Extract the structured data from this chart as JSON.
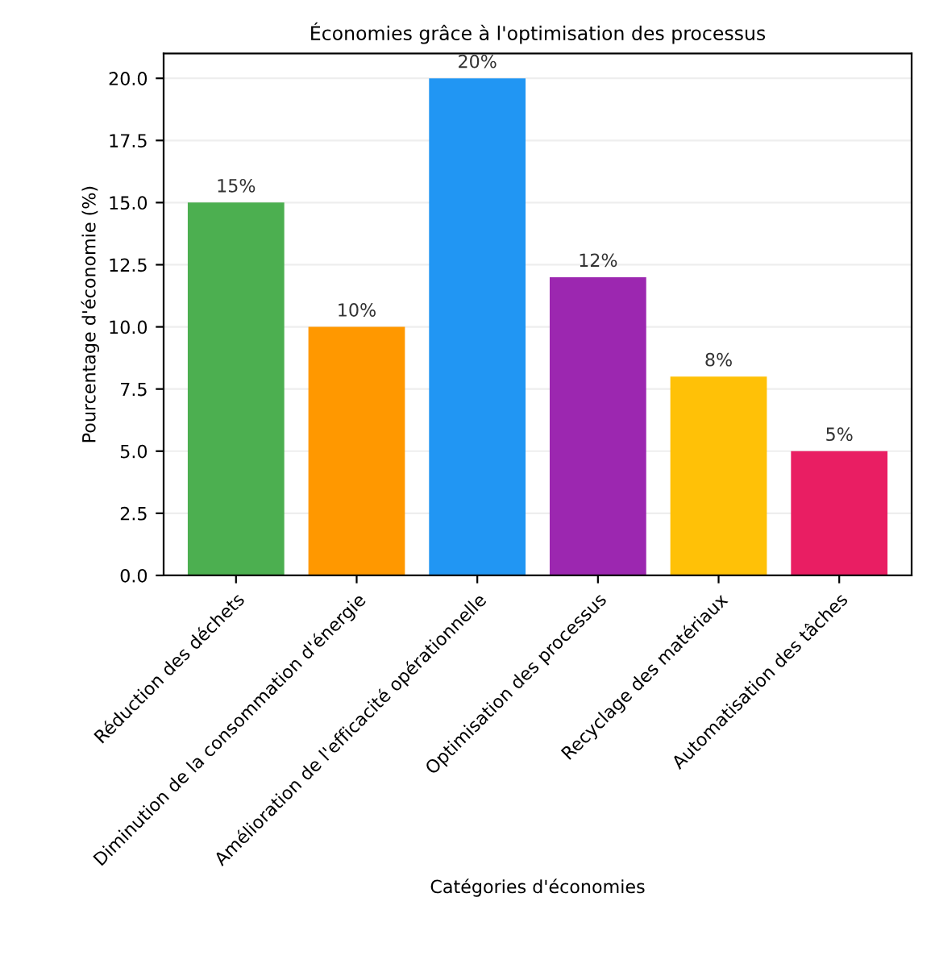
{
  "chart_data": {
    "type": "bar",
    "title": "Économies grâce à l'optimisation des processus",
    "xlabel": "Catégories d'économies",
    "ylabel": "Pourcentage d'économie (%)",
    "categories": [
      "Réduction des déchets",
      "Diminution de la consommation d'énergie",
      "Amélioration de l'efficacité opérationnelle",
      "Optimisation des processus",
      "Recyclage des matériaux",
      "Automatisation des tâches"
    ],
    "values": [
      15,
      10,
      20,
      12,
      8,
      5
    ],
    "colors": [
      "#4caf50",
      "#ff9800",
      "#2196f3",
      "#9c27b0",
      "#ffc107",
      "#e91e63"
    ],
    "value_labels": [
      "15%",
      "10%",
      "20%",
      "12%",
      "8%",
      "5%"
    ],
    "ylim": [
      0,
      21
    ],
    "yticks": [
      {
        "value": 0,
        "label": "0.0"
      },
      {
        "value": 2.5,
        "label": "2.5"
      },
      {
        "value": 5,
        "label": "5.0"
      },
      {
        "value": 7.5,
        "label": "7.5"
      },
      {
        "value": 10,
        "label": "10.0"
      },
      {
        "value": 12.5,
        "label": "12.5"
      },
      {
        "value": 15,
        "label": "15.0"
      },
      {
        "value": 17.5,
        "label": "17.5"
      },
      {
        "value": 20,
        "label": "20.0"
      }
    ],
    "grid": "y"
  }
}
